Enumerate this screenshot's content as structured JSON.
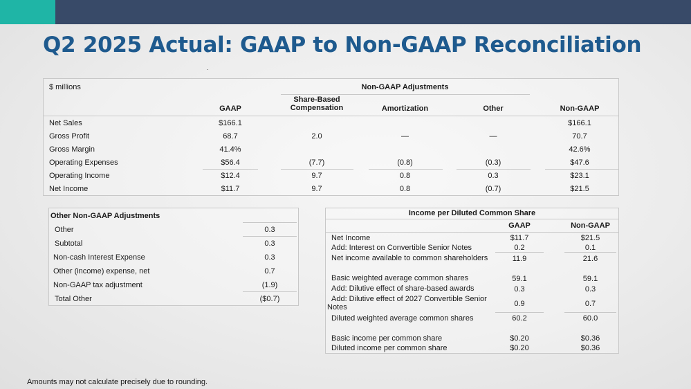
{
  "title": "Q2 2025 Actual: GAAP to Non-GAAP Reconciliation",
  "main_table": {
    "units": "$ millions",
    "group_header": "Non-GAAP Adjustments",
    "columns": [
      "GAAP",
      "Share-Based Compensation",
      "Amortization",
      "Other",
      "Non-GAAP"
    ],
    "rows": [
      {
        "label": "Net Sales",
        "gaap": "$166.1",
        "sbc": "",
        "amort": "",
        "other": "",
        "nongaap": "$166.1"
      },
      {
        "label": "Gross Profit",
        "gaap": "68.7",
        "sbc": "2.0",
        "amort": "—",
        "other": "—",
        "nongaap": "70.7"
      },
      {
        "label": "Gross Margin",
        "gaap": "41.4%",
        "sbc": "",
        "amort": "",
        "other": "",
        "nongaap": "42.6%"
      },
      {
        "label": "Operating Expenses",
        "gaap": "$56.4",
        "sbc": "(7.7)",
        "amort": "(0.8)",
        "other": "(0.3)",
        "nongaap": "$47.6"
      },
      {
        "label": "Operating Income",
        "gaap": "$12.4",
        "sbc": "9.7",
        "amort": "0.8",
        "other": "0.3",
        "nongaap": "$23.1"
      },
      {
        "label": "Net Income",
        "gaap": "$11.7",
        "sbc": "9.7",
        "amort": "0.8",
        "other": "(0.7)",
        "nongaap": "$21.5"
      }
    ]
  },
  "other_adjustments": {
    "title": "Other Non-GAAP Adjustments",
    "rows": [
      {
        "label": "Other",
        "value": "0.3"
      },
      {
        "label": "Subtotal",
        "value": "0.3"
      },
      {
        "label": "Non-cash Interest Expense",
        "value": "0.3"
      },
      {
        "label": "Other (income) expense, net",
        "value": "0.7"
      },
      {
        "label": "Non-GAAP tax adjustment",
        "value": "(1.9)"
      },
      {
        "label": "Total Other",
        "value": "($0.7)"
      }
    ]
  },
  "eps_table": {
    "title": "Income per Diluted Common Share",
    "col_gaap": "GAAP",
    "col_nongaap": "Non-GAAP",
    "rows": [
      {
        "label": "Net Income",
        "gaap": "$11.7",
        "nongaap": "$21.5"
      },
      {
        "label": "Add: Interest on Convertible Senior Notes",
        "gaap": "0.2",
        "nongaap": "0.1"
      },
      {
        "label": "Net income available to common shareholders",
        "gaap": "11.9",
        "nongaap": "21.6"
      },
      {
        "label": "Basic weighted average common shares",
        "gaap": "59.1",
        "nongaap": "59.1"
      },
      {
        "label": "Add: Dilutive effect of share-based awards",
        "gaap": "0.3",
        "nongaap": "0.3"
      },
      {
        "label": "Add: Dilutive effect of 2027 Convertible Senior Notes",
        "gaap": "0.9",
        "nongaap": "0.7"
      },
      {
        "label": "Diluted weighted average common shares",
        "gaap": "60.2",
        "nongaap": "60.0"
      },
      {
        "label": "Basic income per common share",
        "gaap": "$0.20",
        "nongaap": "$0.36"
      },
      {
        "label": "Diluted income per common share",
        "gaap": "$0.20",
        "nongaap": "$0.36"
      }
    ]
  },
  "footnote": "Amounts may not calculate precisely due to rounding.",
  "colors": {
    "accent": "#1fb5a6",
    "bar": "#384a68",
    "title": "#1e5a8e"
  }
}
